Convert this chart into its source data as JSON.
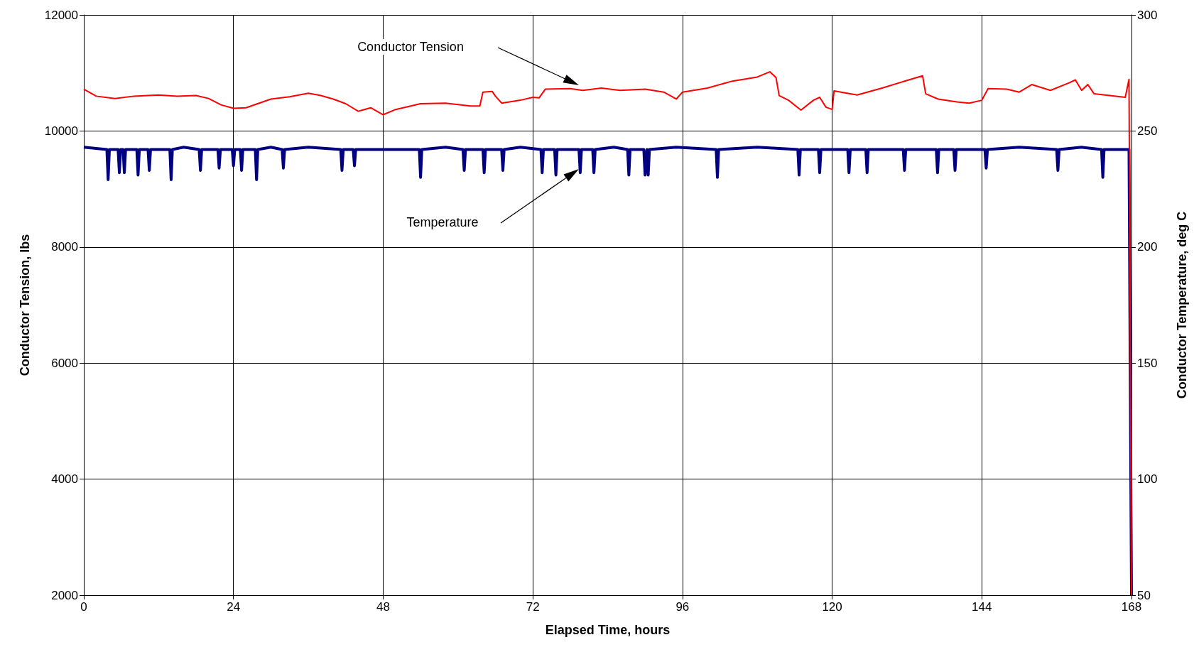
{
  "chart_data": {
    "type": "line",
    "xlabel": "Elapsed Time, hours",
    "ylabel": "Conductor Tension, lbs",
    "y2label": "Conductor Temperature, deg C",
    "xlim": [
      0,
      168
    ],
    "xticks": [
      0,
      24,
      48,
      72,
      96,
      120,
      144,
      168
    ],
    "ylim": [
      2000,
      12000
    ],
    "yticks": [
      2000,
      4000,
      6000,
      8000,
      10000,
      12000
    ],
    "y2lim": [
      50,
      300
    ],
    "y2ticks": [
      50,
      100,
      150,
      200,
      250,
      300
    ],
    "grid": true,
    "marker": "none",
    "line_style": "solid",
    "annotations": [
      "Conductor Tension",
      "Temperature"
    ],
    "series": [
      {
        "color": "#ff0000",
        "x": [
          0,
          2,
          5,
          8,
          12,
          15,
          18,
          20,
          22,
          24,
          26,
          30,
          33,
          36,
          38,
          40,
          42,
          44,
          46,
          48,
          50,
          54,
          58,
          62,
          63.5,
          64,
          65.5,
          66,
          67,
          70,
          72,
          73,
          74,
          78,
          80,
          83,
          86,
          90,
          93,
          95,
          96,
          100,
          104,
          108,
          110,
          111,
          111.5,
          113,
          115,
          117,
          118,
          119,
          120,
          120.3,
          124,
          128,
          132,
          134.5,
          135,
          137,
          140,
          142,
          144,
          145,
          148,
          150,
          152,
          155,
          158,
          159,
          160,
          161,
          162,
          167,
          167.6,
          168
        ],
        "values": [
          10720,
          10600,
          10560,
          10600,
          10620,
          10600,
          10610,
          10560,
          10450,
          10390,
          10400,
          10550,
          10590,
          10650,
          10610,
          10550,
          10470,
          10340,
          10400,
          10280,
          10370,
          10470,
          10480,
          10430,
          10430,
          10670,
          10680,
          10600,
          10480,
          10530,
          10580,
          10570,
          10720,
          10730,
          10700,
          10740,
          10700,
          10720,
          10670,
          10550,
          10670,
          10740,
          10860,
          10930,
          11020,
          10920,
          10610,
          10530,
          10360,
          10530,
          10580,
          10410,
          10370,
          10690,
          10620,
          10740,
          10870,
          10950,
          10640,
          10550,
          10500,
          10480,
          10530,
          10730,
          10720,
          10670,
          10800,
          10700,
          10830,
          10880,
          10700,
          10800,
          10640,
          10580,
          10890,
          2000
        ]
      },
      {
        "color": "#000080",
        "axis": "y2",
        "x": [
          0,
          3.7,
          3.9,
          4.1,
          5.5,
          5.7,
          5.9,
          6.3,
          6.5,
          6.7,
          8.5,
          8.7,
          8.9,
          10.3,
          10.5,
          10.7,
          13.8,
          14,
          14.2,
          16,
          18.5,
          18.7,
          18.9,
          21.5,
          21.7,
          21.9,
          23.8,
          24,
          24.2,
          25.1,
          25.3,
          25.5,
          27.5,
          27.7,
          27.9,
          30,
          31.8,
          32,
          32.2,
          36,
          41.2,
          41.4,
          41.6,
          43.2,
          43.4,
          43.6,
          48,
          53.8,
          54,
          54.2,
          58,
          60.8,
          61,
          61.2,
          64,
          64.2,
          64.4,
          67,
          67.2,
          67.4,
          70,
          73.3,
          73.5,
          73.7,
          75.5,
          75.7,
          75.9,
          79.4,
          79.6,
          79.8,
          81.6,
          81.8,
          82,
          85,
          87.2,
          87.4,
          87.6,
          89.8,
          90,
          90.3,
          90.5,
          90.7,
          95,
          101.4,
          101.6,
          101.8,
          108,
          114.5,
          114.7,
          114.9,
          117.8,
          118,
          118.2,
          122.5,
          122.7,
          122.9,
          125.4,
          125.6,
          125.8,
          131.4,
          131.6,
          131.8,
          136.7,
          136.9,
          137.1,
          139.5,
          139.7,
          139.9,
          144.5,
          144.7,
          144.9,
          150,
          156,
          156.2,
          156.4,
          160,
          163.2,
          163.4,
          163.6,
          167.6,
          168
        ],
        "values": [
          243,
          242,
          229,
          242,
          242,
          232,
          242,
          242,
          232,
          242,
          242,
          231,
          242,
          242,
          233,
          242,
          242,
          229,
          242,
          243,
          242,
          233,
          242,
          242,
          234,
          242,
          242,
          235,
          242,
          242,
          233,
          242,
          242,
          229,
          242,
          243,
          242,
          234,
          242,
          243,
          242,
          233,
          242,
          242,
          235,
          242,
          242,
          242,
          230,
          242,
          243,
          242,
          233,
          242,
          242,
          232,
          242,
          242,
          233,
          242,
          243,
          242,
          232,
          242,
          242,
          231,
          242,
          242,
          232,
          242,
          242,
          232,
          242,
          243,
          242,
          231,
          242,
          242,
          231,
          242,
          231,
          242,
          243,
          242,
          230,
          242,
          243,
          242,
          231,
          242,
          242,
          232,
          242,
          242,
          232,
          242,
          242,
          232,
          242,
          242,
          233,
          242,
          242,
          232,
          242,
          242,
          233,
          242,
          242,
          234,
          242,
          243,
          242,
          233,
          242,
          243,
          242,
          230,
          242,
          242,
          50
        ]
      }
    ]
  }
}
